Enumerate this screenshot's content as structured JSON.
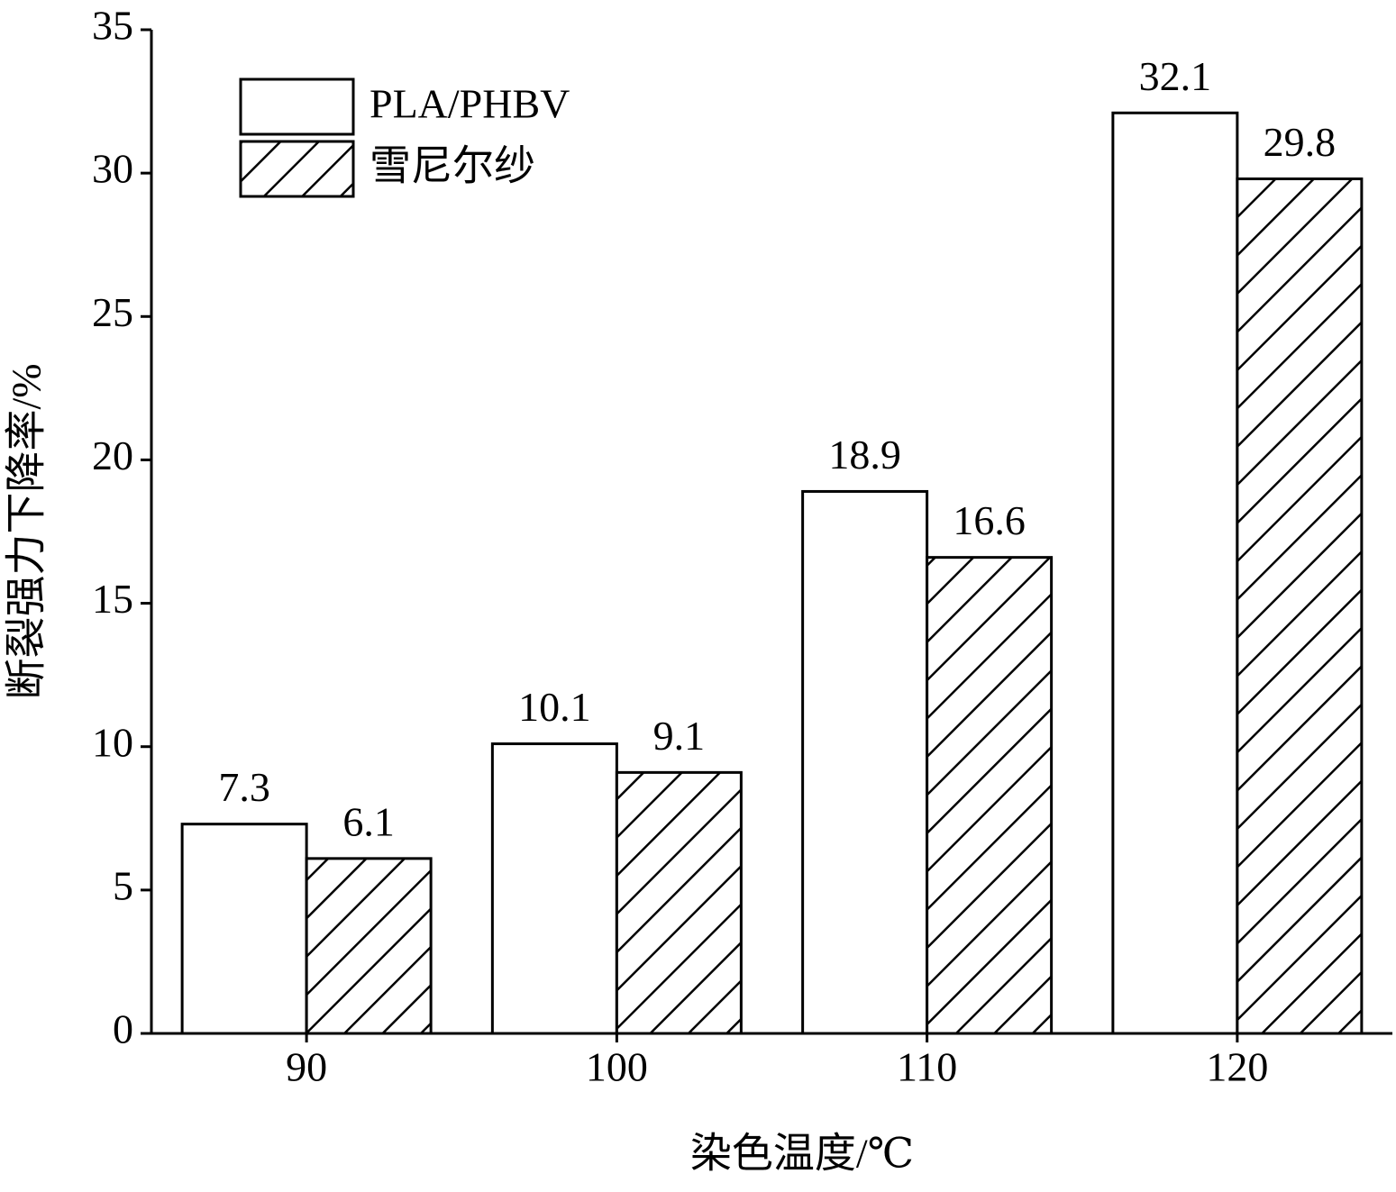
{
  "chart_data": {
    "type": "bar",
    "x_label": "染色温度/℃",
    "y_label": "断裂强力下降率/%",
    "categories": [
      "90",
      "100",
      "110",
      "120"
    ],
    "series": [
      {
        "name": "PLA/PHBV",
        "color": "#ffffff",
        "pattern": "solid",
        "values": [
          7.3,
          10.1,
          18.9,
          32.1
        ]
      },
      {
        "name": "雪尼尔纱",
        "color": "#ffffff",
        "pattern": "diagonal",
        "values": [
          6.1,
          9.1,
          16.6,
          29.8
        ]
      }
    ],
    "ylim": [
      0,
      35
    ],
    "yticks": [
      0,
      5,
      10,
      15,
      20,
      25,
      30,
      35
    ],
    "grid": false,
    "legend": "upper left"
  }
}
